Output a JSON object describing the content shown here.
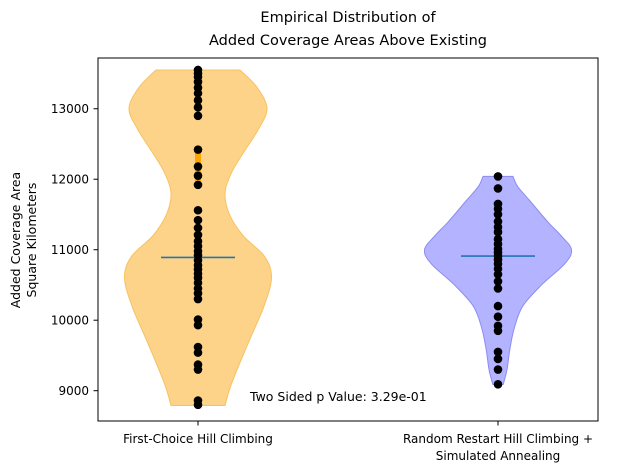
{
  "chart_data": {
    "type": "violin",
    "title_lines": [
      "Empirical Distribution of",
      "Added Coverage Areas Above Existing"
    ],
    "ylabel_lines": [
      "Added Coverage Area",
      "Square Kilometers"
    ],
    "xlabel": "",
    "categories": [
      {
        "label_lines": [
          "First-Choice Hill Climbing"
        ]
      },
      {
        "label_lines": [
          "Random Restart Hill Climbing +",
          "Simulated Annealing"
        ]
      }
    ],
    "ylim": [
      8570,
      13720
    ],
    "yticks": [
      9000,
      10000,
      11000,
      12000,
      13000
    ],
    "grid": false,
    "annotation": "Two Sided p Value: 3.29e-01",
    "series": [
      {
        "fill_color": "#fdd38a",
        "edge_color": "#f8c15f",
        "min": 8790,
        "max": 13550,
        "median": 10890,
        "whisker_color": "#ffa500",
        "whisker_from": 11900,
        "whisker_to": 12470,
        "points": [
          8800,
          8860,
          9300,
          9370,
          9540,
          9620,
          9930,
          10010,
          10300,
          10380,
          10450,
          10530,
          10600,
          10660,
          10720,
          10780,
          10850,
          10920,
          10980,
          11050,
          11120,
          11210,
          11310,
          11420,
          11560,
          11920,
          12050,
          12180,
          12420,
          12900,
          13020,
          13120,
          13220,
          13300,
          13380,
          13450,
          13500,
          13550
        ],
        "density": [
          [
            8790,
            0.36
          ],
          [
            9050,
            0.43
          ],
          [
            9400,
            0.56
          ],
          [
            9800,
            0.72
          ],
          [
            10200,
            0.88
          ],
          [
            10600,
            0.98
          ],
          [
            10900,
            0.89
          ],
          [
            11200,
            0.6
          ],
          [
            11500,
            0.42
          ],
          [
            11800,
            0.36
          ],
          [
            12100,
            0.45
          ],
          [
            12400,
            0.62
          ],
          [
            12700,
            0.8
          ],
          [
            13000,
            0.92
          ],
          [
            13300,
            0.79
          ],
          [
            13550,
            0.56
          ]
        ]
      },
      {
        "fill_color": "#b3b3ff",
        "edge_color": "#8c8cf2",
        "min": 9090,
        "max": 12040,
        "median": 10910,
        "points": [
          9090,
          9300,
          9450,
          9550,
          9850,
          9920,
          10050,
          10200,
          10450,
          10550,
          10650,
          10730,
          10800,
          10860,
          10910,
          10960,
          11010,
          11080,
          11150,
          11250,
          11320,
          11400,
          11500,
          11580,
          11650,
          11870,
          12040
        ],
        "density": [
          [
            9090,
            0.07
          ],
          [
            9300,
            0.12
          ],
          [
            9600,
            0.16
          ],
          [
            9900,
            0.22
          ],
          [
            10200,
            0.33
          ],
          [
            10500,
            0.58
          ],
          [
            10800,
            0.89
          ],
          [
            11000,
            0.98
          ],
          [
            11200,
            0.84
          ],
          [
            11400,
            0.66
          ],
          [
            11700,
            0.42
          ],
          [
            11900,
            0.26
          ],
          [
            12040,
            0.2
          ]
        ]
      }
    ]
  }
}
